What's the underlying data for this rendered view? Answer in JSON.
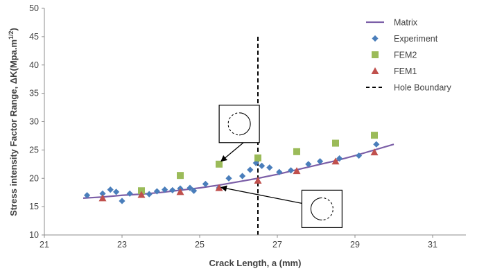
{
  "chart_data": {
    "type": "scatter",
    "xlabel": "Crack Length, a (mm)",
    "ylabel_main": "Stress intensity Factor Range, ΔK(Mpa.m",
    "ylabel_sup": "1/2",
    "ylabel_close": ")",
    "xlim": [
      21,
      32
    ],
    "ylim": [
      10,
      50
    ],
    "x_ticks": [
      21,
      23,
      25,
      27,
      29,
      31
    ],
    "y_ticks": [
      10,
      15,
      20,
      25,
      30,
      35,
      40,
      45,
      50
    ],
    "legend_position": "top-right",
    "grid": false,
    "series": [
      {
        "name": "Matrix",
        "kind": "line",
        "color": "#7b5ea7",
        "x": [
          22.0,
          22.5,
          23.0,
          23.5,
          24.0,
          24.5,
          25.0,
          25.5,
          26.0,
          26.5,
          27.0,
          27.5,
          28.0,
          28.5,
          29.0,
          29.5,
          30.0
        ],
        "y": [
          16.5,
          16.7,
          17.0,
          17.2,
          17.5,
          17.9,
          18.3,
          18.8,
          19.4,
          20.0,
          20.7,
          21.5,
          22.3,
          23.1,
          24.0,
          25.0,
          26.0
        ]
      },
      {
        "name": "Experiment",
        "kind": "diamond",
        "color": "#4a7ebb",
        "x": [
          22.1,
          22.5,
          22.7,
          22.85,
          23.0,
          23.2,
          23.5,
          23.7,
          23.9,
          24.1,
          24.3,
          24.5,
          24.75,
          24.85,
          25.15,
          25.5,
          25.75,
          26.1,
          26.3,
          26.45,
          26.6,
          26.8,
          27.05,
          27.35,
          27.8,
          28.1,
          28.6,
          29.1,
          29.55
        ],
        "y": [
          17.0,
          17.3,
          18.0,
          17.6,
          16.0,
          17.3,
          17.6,
          17.2,
          17.7,
          18.0,
          17.9,
          18.2,
          18.3,
          17.8,
          19.0,
          18.3,
          20.0,
          20.4,
          21.5,
          22.7,
          22.2,
          21.9,
          21.1,
          21.4,
          22.5,
          23.0,
          23.5,
          24.0,
          26.0
        ]
      },
      {
        "name": "FEM2",
        "kind": "square",
        "color": "#9bbb59",
        "x": [
          23.5,
          24.5,
          25.5,
          26.5,
          27.5,
          28.5,
          29.5
        ],
        "y": [
          17.8,
          20.5,
          22.5,
          23.6,
          24.7,
          26.2,
          27.6
        ]
      },
      {
        "name": "FEM1",
        "kind": "triangle",
        "color": "#c0504d",
        "x": [
          22.5,
          23.5,
          24.5,
          25.5,
          26.5,
          27.5,
          28.5,
          29.5
        ],
        "y": [
          16.5,
          17.1,
          17.6,
          18.3,
          19.6,
          21.3,
          23.0,
          24.6
        ]
      },
      {
        "name": "Hole Boundary",
        "kind": "dashed-vline",
        "color": "#000000",
        "x": [
          26.5,
          26.5
        ],
        "y": [
          10,
          45
        ]
      }
    ],
    "annotations": [
      {
        "icon": "circle-dashed-left",
        "box_center": [
          26.02,
          29.6
        ],
        "arrow_to": [
          25.55,
          23.0
        ]
      },
      {
        "icon": "circle-dashed-right",
        "box_center": [
          28.15,
          14.6
        ],
        "arrow_to": [
          25.55,
          18.4
        ]
      }
    ]
  }
}
